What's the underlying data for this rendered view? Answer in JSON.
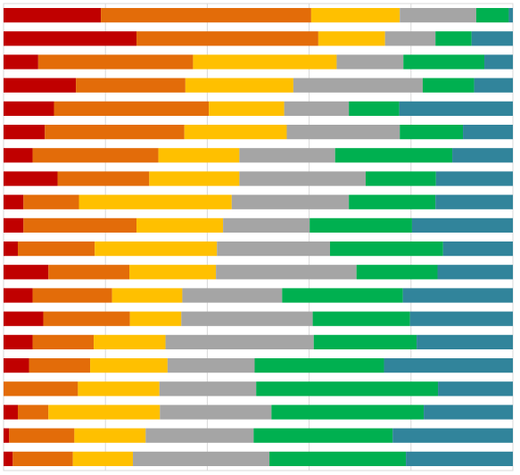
{
  "chart_data": {
    "type": "bar",
    "orientation": "horizontal",
    "stacked": "percent",
    "title": "",
    "xlabel": "",
    "ylabel": "",
    "xlim": [
      0,
      100
    ],
    "grid": true,
    "gridlines_x": [
      0,
      20,
      40,
      60,
      80,
      100
    ],
    "legend": "none",
    "categories": [
      "",
      "",
      "",
      "",
      "",
      "",
      "",
      "",
      "",
      "",
      "",
      "",
      "",
      "",
      "",
      "",
      "",
      "",
      "",
      ""
    ],
    "series": [
      {
        "color": "#c00000",
        "values": [
          19.1,
          26.1,
          6.8,
          14.2,
          9.9,
          8.1,
          5.7,
          10.6,
          3.9,
          3.9,
          2.8,
          8.8,
          5.7,
          7.8,
          5.7,
          5.0,
          0.0,
          2.8,
          1.1,
          1.8
        ]
      },
      {
        "color": "#e36c09",
        "values": [
          41.3,
          35.7,
          30.4,
          21.5,
          30.4,
          27.4,
          24.7,
          18.0,
          10.9,
          22.2,
          15.1,
          15.9,
          15.6,
          17.0,
          12.0,
          12.0,
          14.6,
          6.0,
          12.8,
          11.8
        ]
      },
      {
        "color": "#ffc000",
        "values": [
          17.4,
          13.1,
          28.2,
          21.2,
          14.8,
          20.1,
          15.9,
          17.7,
          30.0,
          17.0,
          24.0,
          17.0,
          13.8,
          10.1,
          14.1,
          15.2,
          16.0,
          21.9,
          14.0,
          11.8
        ]
      },
      {
        "color": "#a5a5a5",
        "values": [
          15.0,
          9.9,
          13.1,
          25.4,
          12.7,
          22.2,
          18.8,
          24.8,
          23.0,
          17.0,
          22.2,
          27.6,
          19.6,
          25.8,
          29.1,
          17.1,
          19.0,
          21.9,
          21.2,
          26.8
        ]
      },
      {
        "color": "#00b050",
        "values": [
          6.4,
          7.1,
          15.9,
          10.1,
          9.9,
          12.4,
          23.0,
          13.8,
          17.0,
          20.1,
          22.2,
          15.9,
          23.7,
          19.1,
          20.2,
          25.4,
          35.7,
          29.9,
          27.3,
          26.8
        ]
      },
      {
        "color": "#31849b",
        "values": [
          0.8,
          8.1,
          5.6,
          7.6,
          22.3,
          9.8,
          11.9,
          15.1,
          15.2,
          19.8,
          13.7,
          14.8,
          21.6,
          20.2,
          18.9,
          25.3,
          14.7,
          17.5,
          23.6,
          21.0
        ]
      }
    ]
  }
}
